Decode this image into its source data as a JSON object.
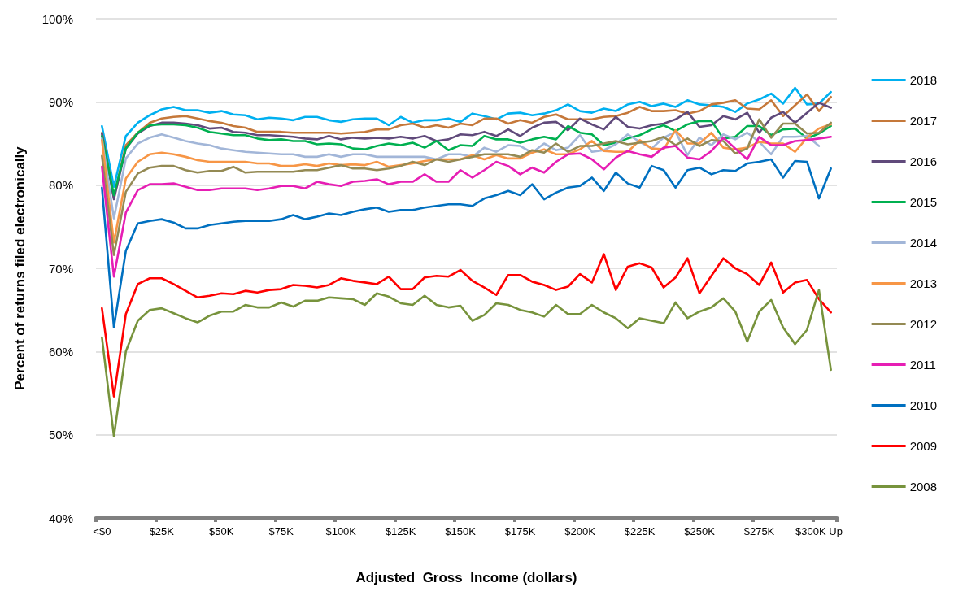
{
  "chart_data": {
    "type": "line",
    "xlabel": "Adjusted  Gross  Income (dollars)",
    "ylabel": "Percent of returns filed electronically",
    "categories": [
      "<$0",
      null,
      null,
      null,
      null,
      "$25K",
      null,
      null,
      null,
      null,
      "$50K",
      null,
      null,
      null,
      null,
      "$75K",
      null,
      null,
      null,
      null,
      "$100K",
      null,
      null,
      null,
      null,
      "$125K",
      null,
      null,
      null,
      null,
      "$150K",
      null,
      null,
      null,
      null,
      "$175K",
      null,
      null,
      null,
      null,
      "$200K",
      null,
      null,
      null,
      null,
      "$225K",
      null,
      null,
      null,
      null,
      "$250K",
      null,
      null,
      null,
      null,
      "$275K",
      null,
      null,
      null,
      null,
      "$300K Up",
      null
    ],
    "ylim": [
      40,
      100
    ],
    "yticks": [
      {
        "value": 40,
        "label": "40%"
      },
      {
        "value": 50,
        "label": "50%"
      },
      {
        "value": 60,
        "label": "60%"
      },
      {
        "value": 70,
        "label": "70%"
      },
      {
        "value": 80,
        "label": "80%"
      },
      {
        "value": 90,
        "label": "90%"
      },
      {
        "value": 100,
        "label": "100%"
      }
    ],
    "grid": "y",
    "legend": "right",
    "marker": "none",
    "line_style": "solid",
    "series": [
      {
        "name": "2018",
        "color": "#00b0f0",
        "values": [
          87.1,
          79.8,
          85.9,
          87.5,
          88.4,
          89.1,
          89.4,
          89.0,
          89.0,
          88.7,
          88.9,
          88.5,
          88.4,
          87.9,
          88.1,
          88.0,
          87.8,
          88.2,
          88.2,
          87.8,
          87.6,
          87.9,
          88.0,
          88.0,
          87.2,
          88.2,
          87.5,
          87.8,
          87.8,
          88.0,
          87.6,
          88.6,
          88.3,
          87.9,
          88.6,
          88.7,
          88.4,
          88.6,
          89.0,
          89.7,
          88.9,
          88.7,
          89.2,
          88.9,
          89.7,
          90.0,
          89.5,
          89.8,
          89.4,
          90.2,
          89.7,
          89.6,
          89.4,
          88.8,
          89.8,
          90.3,
          91.0,
          89.8,
          91.7,
          89.7,
          89.8,
          91.2
        ]
      },
      {
        "name": "2017",
        "color": "#c5783a",
        "values": [
          86.3,
          78.5,
          84.8,
          86.3,
          87.5,
          88.0,
          88.2,
          88.3,
          88.0,
          87.7,
          87.5,
          87.1,
          86.9,
          86.4,
          86.4,
          86.4,
          86.3,
          86.3,
          86.3,
          86.3,
          86.2,
          86.3,
          86.4,
          86.7,
          86.7,
          87.2,
          87.4,
          86.9,
          87.2,
          86.9,
          87.4,
          87.2,
          88.0,
          88.0,
          87.4,
          87.8,
          87.5,
          88.2,
          88.5,
          87.9,
          87.9,
          87.9,
          88.2,
          88.3,
          88.7,
          89.4,
          88.9,
          88.9,
          89.0,
          88.6,
          88.9,
          89.7,
          89.9,
          90.2,
          89.2,
          89.1,
          90.2,
          88.3,
          89.6,
          90.9,
          88.9,
          90.6
        ]
      },
      {
        "name": "2016",
        "color": "#604a7b",
        "values": [
          86.2,
          78.3,
          84.4,
          86.2,
          87.1,
          87.5,
          87.5,
          87.4,
          87.2,
          86.8,
          86.9,
          86.4,
          86.3,
          86.0,
          86.0,
          85.9,
          85.8,
          85.6,
          85.5,
          85.9,
          85.5,
          85.7,
          85.6,
          85.7,
          85.6,
          85.8,
          85.6,
          85.9,
          85.3,
          85.5,
          86.1,
          86.0,
          86.4,
          85.9,
          86.7,
          85.9,
          86.9,
          87.5,
          87.6,
          86.6,
          88.0,
          87.3,
          86.7,
          88.2,
          87.0,
          86.8,
          87.2,
          87.4,
          87.9,
          88.8,
          87.0,
          87.2,
          88.3,
          87.9,
          88.7,
          86.3,
          88.1,
          88.8,
          87.5,
          88.7,
          89.9,
          89.3
        ]
      },
      {
        "name": "2015",
        "color": "#00b050",
        "values": [
          85.9,
          78.8,
          84.4,
          86.3,
          87.2,
          87.3,
          87.3,
          87.2,
          86.9,
          86.4,
          86.2,
          86.0,
          86.0,
          85.6,
          85.4,
          85.5,
          85.3,
          85.3,
          84.9,
          85.0,
          84.9,
          84.4,
          84.3,
          84.7,
          85.0,
          84.8,
          85.1,
          84.5,
          85.3,
          84.2,
          84.8,
          84.7,
          85.9,
          85.5,
          85.5,
          85.1,
          85.5,
          85.8,
          85.5,
          87.1,
          86.3,
          86.1,
          84.8,
          85.1,
          85.6,
          86.0,
          86.7,
          87.2,
          86.5,
          87.3,
          87.7,
          87.7,
          85.6,
          85.8,
          87.1,
          87.1,
          86.0,
          86.7,
          86.8,
          85.6,
          86.2,
          87.1
        ]
      },
      {
        "name": "2014",
        "color": "#a2b6d8",
        "values": [
          85.6,
          76.0,
          83.2,
          85.0,
          85.7,
          86.1,
          85.7,
          85.3,
          85.0,
          84.8,
          84.4,
          84.2,
          84.0,
          83.9,
          83.8,
          83.7,
          83.7,
          83.4,
          83.4,
          83.7,
          83.4,
          83.7,
          83.7,
          83.4,
          83.4,
          83.4,
          83.4,
          83.4,
          83.1,
          83.7,
          83.7,
          83.4,
          84.5,
          84.0,
          84.8,
          84.7,
          83.9,
          85.0,
          84.2,
          84.5,
          86.0,
          84.0,
          84.2,
          84.9,
          86.1,
          85.2,
          84.4,
          85.7,
          86.4,
          83.6,
          85.7,
          84.8,
          86.1,
          85.5,
          86.3,
          85.2,
          83.7,
          85.8,
          85.8,
          85.9,
          84.7,
          null
        ]
      },
      {
        "name": "2013",
        "color": "#f79646",
        "values": [
          85.4,
          73.1,
          80.8,
          82.8,
          83.7,
          83.9,
          83.7,
          83.4,
          83.0,
          82.8,
          82.8,
          82.8,
          82.8,
          82.6,
          82.6,
          82.3,
          82.3,
          82.5,
          82.3,
          82.6,
          82.4,
          82.5,
          82.4,
          82.8,
          82.2,
          82.4,
          82.6,
          82.9,
          83.1,
          83.1,
          83.1,
          83.6,
          83.1,
          83.6,
          83.2,
          83.2,
          83.9,
          84.3,
          83.7,
          83.7,
          84.3,
          85.3,
          84.1,
          84.0,
          84.0,
          85.4,
          84.4,
          84.3,
          86.6,
          85.0,
          85.0,
          86.3,
          84.5,
          84.3,
          84.5,
          85.2,
          85.0,
          85.0,
          84.0,
          85.7,
          86.8,
          87.3
        ]
      },
      {
        "name": "2012",
        "color": "#948a54",
        "values": [
          83.5,
          71.6,
          79.2,
          81.4,
          82.1,
          82.3,
          82.3,
          81.8,
          81.5,
          81.7,
          81.7,
          82.2,
          81.5,
          81.6,
          81.6,
          81.6,
          81.6,
          81.8,
          81.8,
          82.1,
          82.4,
          82.0,
          82.0,
          81.8,
          82.0,
          82.3,
          82.8,
          82.4,
          83.1,
          82.8,
          83.1,
          83.4,
          83.7,
          83.7,
          83.7,
          83.4,
          84.2,
          83.9,
          85.0,
          84.0,
          84.7,
          84.7,
          85.0,
          85.3,
          84.9,
          85.1,
          85.3,
          85.8,
          84.8,
          85.6,
          84.7,
          85.4,
          85.3,
          83.8,
          84.4,
          87.9,
          85.7,
          87.4,
          87.4,
          86.2,
          86.3,
          87.5
        ]
      },
      {
        "name": "2011",
        "color": "#e61eb4",
        "values": [
          82.2,
          69.0,
          76.7,
          79.4,
          80.1,
          80.1,
          80.2,
          79.8,
          79.4,
          79.4,
          79.6,
          79.6,
          79.6,
          79.4,
          79.6,
          79.9,
          79.9,
          79.6,
          80.4,
          80.1,
          79.9,
          80.4,
          80.5,
          80.7,
          80.1,
          80.4,
          80.4,
          81.3,
          80.4,
          80.4,
          81.8,
          80.9,
          81.8,
          82.8,
          82.3,
          81.3,
          82.1,
          81.5,
          82.8,
          83.7,
          83.8,
          83.1,
          81.9,
          83.3,
          84.1,
          83.7,
          83.4,
          84.5,
          84.7,
          83.3,
          83.1,
          84.1,
          85.7,
          84.4,
          83.1,
          85.8,
          84.8,
          84.8,
          85.3,
          85.4,
          85.6,
          85.8
        ]
      },
      {
        "name": "2010",
        "color": "#0070c0",
        "values": [
          79.7,
          62.9,
          72.1,
          75.4,
          75.7,
          75.9,
          75.5,
          74.8,
          74.8,
          75.2,
          75.4,
          75.6,
          75.7,
          75.7,
          75.7,
          75.9,
          76.4,
          75.9,
          76.2,
          76.6,
          76.4,
          76.8,
          77.1,
          77.3,
          76.8,
          77.0,
          77.0,
          77.3,
          77.5,
          77.7,
          77.7,
          77.5,
          78.4,
          78.8,
          79.3,
          78.8,
          80.1,
          78.3,
          79.1,
          79.7,
          79.9,
          80.9,
          79.3,
          81.5,
          80.2,
          79.7,
          82.3,
          81.8,
          79.7,
          81.8,
          82.1,
          81.3,
          81.8,
          81.7,
          82.6,
          82.8,
          83.1,
          80.9,
          82.9,
          82.8,
          78.4,
          82.0
        ]
      },
      {
        "name": "2009",
        "color": "#ff0000",
        "values": [
          65.2,
          54.6,
          64.5,
          68.1,
          68.8,
          68.8,
          68.1,
          67.3,
          66.5,
          66.7,
          67.0,
          66.9,
          67.3,
          67.1,
          67.4,
          67.5,
          68.0,
          67.9,
          67.7,
          68.0,
          68.8,
          68.5,
          68.3,
          68.1,
          69.0,
          67.5,
          67.5,
          68.9,
          69.1,
          69.0,
          69.8,
          68.5,
          67.7,
          66.8,
          69.2,
          69.2,
          68.4,
          68.0,
          67.4,
          67.8,
          69.3,
          68.3,
          71.7,
          67.4,
          70.2,
          70.6,
          70.1,
          67.7,
          68.9,
          71.2,
          67.0,
          69.1,
          71.2,
          70.0,
          69.3,
          68.0,
          70.7,
          67.1,
          68.3,
          68.6,
          66.3,
          64.7
        ]
      },
      {
        "name": "2008",
        "color": "#77933c",
        "values": [
          61.7,
          49.8,
          60.0,
          63.7,
          65.0,
          65.2,
          64.6,
          64.0,
          63.5,
          64.3,
          64.8,
          64.8,
          65.6,
          65.3,
          65.3,
          65.9,
          65.4,
          66.1,
          66.1,
          66.5,
          66.4,
          66.3,
          65.6,
          67.0,
          66.6,
          65.8,
          65.6,
          66.7,
          65.6,
          65.3,
          65.5,
          63.7,
          64.4,
          65.8,
          65.6,
          65.0,
          64.7,
          64.2,
          65.6,
          64.5,
          64.5,
          65.6,
          64.7,
          64.0,
          62.8,
          64.0,
          63.7,
          63.4,
          65.9,
          64.0,
          64.8,
          65.3,
          66.4,
          64.8,
          61.2,
          64.8,
          66.2,
          62.9,
          60.9,
          62.6,
          67.4,
          57.8
        ]
      }
    ]
  }
}
